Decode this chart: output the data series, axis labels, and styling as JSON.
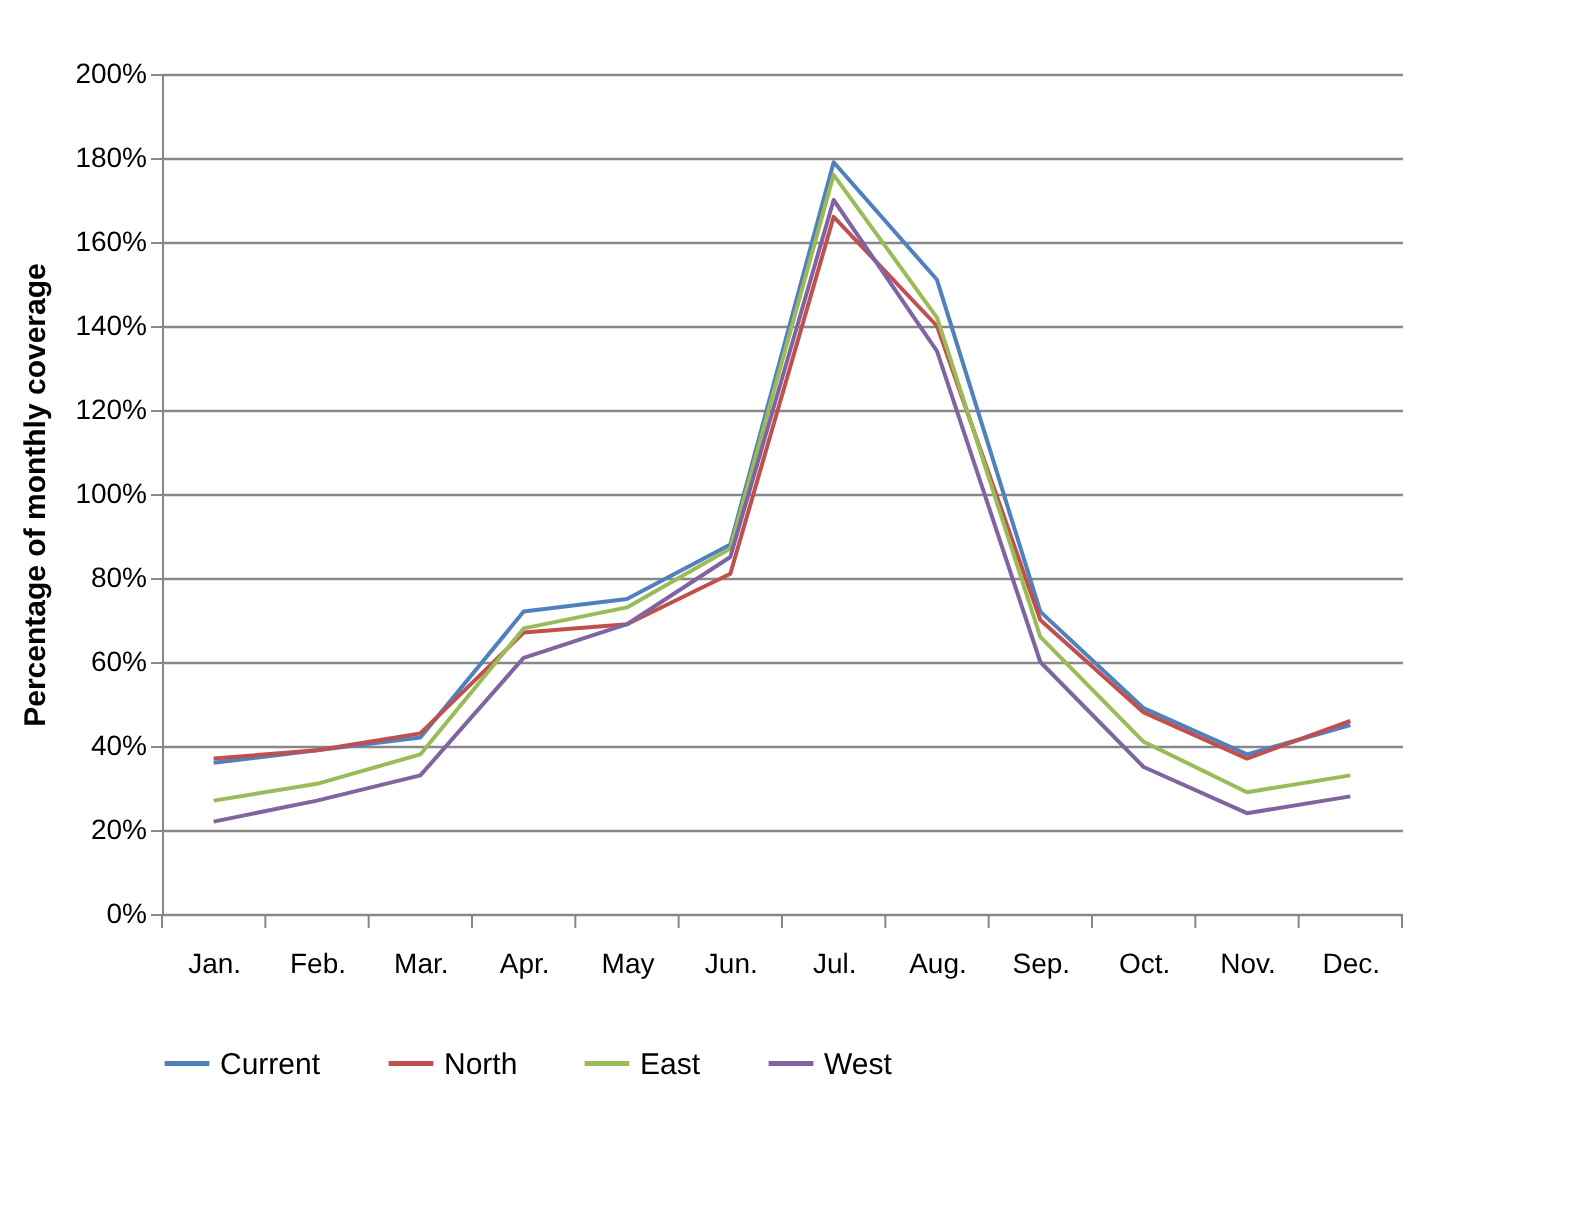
{
  "chart_data": {
    "type": "line",
    "ylabel": "Percentage of monthly coverage",
    "categories": [
      "Jan.",
      "Feb.",
      "Mar.",
      "Apr.",
      "May",
      "Jun.",
      "Jul.",
      "Aug.",
      "Sep.",
      "Oct.",
      "Nov.",
      "Dec."
    ],
    "series": [
      {
        "name": "Current",
        "color": "#4f81bd",
        "values": [
          36,
          39,
          42,
          72,
          75,
          88,
          179,
          151,
          72,
          49,
          38,
          45
        ]
      },
      {
        "name": "North",
        "color": "#c0504d",
        "values": [
          37,
          39,
          43,
          67,
          69,
          81,
          166,
          140,
          70,
          48,
          37,
          46
        ]
      },
      {
        "name": "East",
        "color": "#9bbb59",
        "values": [
          27,
          31,
          38,
          68,
          73,
          87,
          176,
          142,
          66,
          41,
          29,
          33
        ]
      },
      {
        "name": "West",
        "color": "#8064a2",
        "values": [
          22,
          27,
          33,
          61,
          69,
          85,
          170,
          134,
          60,
          35,
          24,
          28
        ]
      }
    ],
    "ylim": [
      0,
      200
    ],
    "yticks": [
      {
        "value": 0,
        "label": "0%"
      },
      {
        "value": 20,
        "label": "20%"
      },
      {
        "value": 40,
        "label": "40%"
      },
      {
        "value": 60,
        "label": "60%"
      },
      {
        "value": 80,
        "label": "80%"
      },
      {
        "value": 100,
        "label": "100%"
      },
      {
        "value": 120,
        "label": "120%"
      },
      {
        "value": 140,
        "label": "140%"
      },
      {
        "value": 160,
        "label": "160%"
      },
      {
        "value": 180,
        "label": "180%"
      },
      {
        "value": 200,
        "label": "200%"
      }
    ],
    "grid": "y",
    "legend": "bottom",
    "marker": "none",
    "line_style": "solid"
  }
}
